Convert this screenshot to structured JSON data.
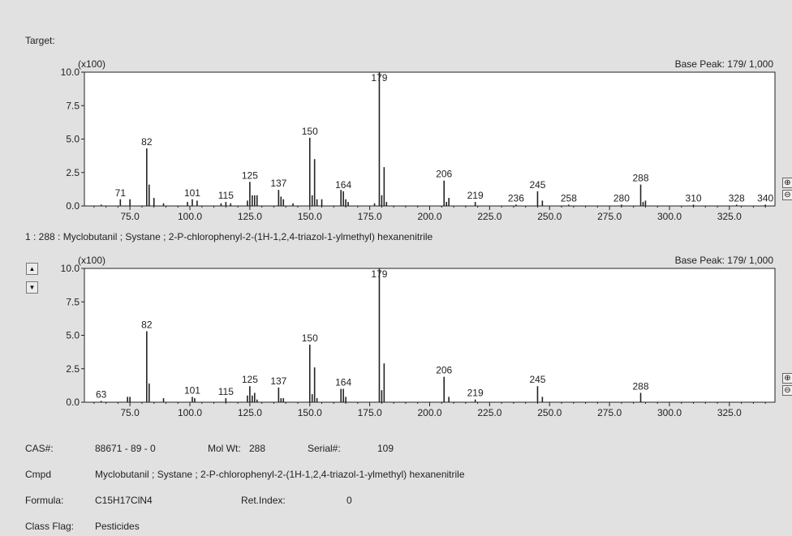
{
  "target_label": "Target:",
  "hit_caption": "1 : 288 : Myclobutanil ; Systane ; 2-P-chlorophenyl-2-(1H-1,2,4-triazol-1-ylmethyl) hexanenitrile",
  "colors": {
    "background": "#e1e1e1",
    "plot_bg": "#ffffff",
    "line": "#222222"
  },
  "icons": {
    "scroll_up": "▲",
    "scroll_down": "▼",
    "zoom_in": "⊕",
    "zoom_out": "⊖"
  },
  "chart_data": [
    {
      "type": "bar",
      "name_label": "Target",
      "scale_label": "(x100)",
      "base_peak_label": "Base Peak: 179/ 1,000",
      "xlim": [
        56,
        344
      ],
      "ylim": [
        0,
        10.0
      ],
      "yticks": [
        "0.0",
        "2.5",
        "5.0",
        "7.5",
        "10.0"
      ],
      "xticks": [
        "75.0",
        "100.0",
        "125.0",
        "150.0",
        "175.0",
        "200.0",
        "225.0",
        "250.0",
        "275.0",
        "300.0",
        "325.0"
      ],
      "grid": false,
      "peaks": [
        {
          "mz": 63,
          "i": 0.1
        },
        {
          "mz": 71,
          "i": 0.5,
          "label": "71"
        },
        {
          "mz": 75,
          "i": 0.5
        },
        {
          "mz": 82,
          "i": 4.3,
          "label": "82"
        },
        {
          "mz": 83,
          "i": 1.6
        },
        {
          "mz": 85,
          "i": 0.6
        },
        {
          "mz": 89,
          "i": 0.2
        },
        {
          "mz": 99,
          "i": 0.3
        },
        {
          "mz": 101,
          "i": 0.5,
          "label": "101"
        },
        {
          "mz": 103,
          "i": 0.4
        },
        {
          "mz": 113,
          "i": 0.2
        },
        {
          "mz": 115,
          "i": 0.3,
          "label": "115"
        },
        {
          "mz": 117,
          "i": 0.2
        },
        {
          "mz": 124,
          "i": 0.4
        },
        {
          "mz": 125,
          "i": 1.8,
          "label": "125"
        },
        {
          "mz": 126,
          "i": 0.8
        },
        {
          "mz": 127,
          "i": 0.8
        },
        {
          "mz": 128,
          "i": 0.8
        },
        {
          "mz": 137,
          "i": 1.2,
          "label": "137"
        },
        {
          "mz": 138,
          "i": 0.7
        },
        {
          "mz": 139,
          "i": 0.5
        },
        {
          "mz": 143,
          "i": 0.2
        },
        {
          "mz": 150,
          "i": 5.1,
          "label": "150"
        },
        {
          "mz": 151,
          "i": 0.8
        },
        {
          "mz": 152,
          "i": 3.5
        },
        {
          "mz": 153,
          "i": 0.5
        },
        {
          "mz": 155,
          "i": 0.5
        },
        {
          "mz": 163,
          "i": 1.2
        },
        {
          "mz": 164,
          "i": 1.1,
          "label": "164"
        },
        {
          "mz": 165,
          "i": 0.5
        },
        {
          "mz": 166,
          "i": 0.3
        },
        {
          "mz": 177,
          "i": 0.2
        },
        {
          "mz": 179,
          "i": 10.0,
          "label": "179"
        },
        {
          "mz": 180,
          "i": 0.8
        },
        {
          "mz": 181,
          "i": 2.9
        },
        {
          "mz": 182,
          "i": 0.3
        },
        {
          "mz": 206,
          "i": 1.9,
          "label": "206"
        },
        {
          "mz": 207,
          "i": 0.3
        },
        {
          "mz": 208,
          "i": 0.6
        },
        {
          "mz": 219,
          "i": 0.3,
          "label": "219"
        },
        {
          "mz": 236,
          "i": 0.1,
          "label": "236"
        },
        {
          "mz": 245,
          "i": 1.1,
          "label": "245"
        },
        {
          "mz": 247,
          "i": 0.4
        },
        {
          "mz": 258,
          "i": 0.1,
          "label": "258"
        },
        {
          "mz": 280,
          "i": 0.1,
          "label": "280"
        },
        {
          "mz": 288,
          "i": 1.6,
          "label": "288"
        },
        {
          "mz": 289,
          "i": 0.3
        },
        {
          "mz": 290,
          "i": 0.4
        },
        {
          "mz": 310,
          "i": 0.1,
          "label": "310"
        },
        {
          "mz": 328,
          "i": 0.1,
          "label": "328"
        },
        {
          "mz": 340,
          "i": 0.1,
          "label": "340"
        }
      ]
    },
    {
      "type": "bar",
      "scale_label": "(x100)",
      "base_peak_label": "Base Peak: 179/ 1,000",
      "xlim": [
        56,
        344
      ],
      "ylim": [
        0,
        10.0
      ],
      "yticks": [
        "0.0",
        "2.5",
        "5.0",
        "7.5",
        "10.0"
      ],
      "xticks": [
        "75.0",
        "100.0",
        "125.0",
        "150.0",
        "175.0",
        "200.0",
        "225.0",
        "250.0",
        "275.0",
        "300.0",
        "325.0"
      ],
      "grid": false,
      "peaks": [
        {
          "mz": 63,
          "i": 0.1,
          "label": "63"
        },
        {
          "mz": 74,
          "i": 0.4
        },
        {
          "mz": 75,
          "i": 0.4
        },
        {
          "mz": 82,
          "i": 5.3,
          "label": "82"
        },
        {
          "mz": 83,
          "i": 1.4
        },
        {
          "mz": 89,
          "i": 0.3
        },
        {
          "mz": 101,
          "i": 0.4,
          "label": "101"
        },
        {
          "mz": 102,
          "i": 0.3
        },
        {
          "mz": 115,
          "i": 0.3,
          "label": "115"
        },
        {
          "mz": 124,
          "i": 0.5
        },
        {
          "mz": 125,
          "i": 1.2,
          "label": "125"
        },
        {
          "mz": 126,
          "i": 0.5
        },
        {
          "mz": 127,
          "i": 0.7
        },
        {
          "mz": 128,
          "i": 0.2
        },
        {
          "mz": 137,
          "i": 1.1,
          "label": "137"
        },
        {
          "mz": 138,
          "i": 0.3
        },
        {
          "mz": 139,
          "i": 0.3
        },
        {
          "mz": 150,
          "i": 4.3,
          "label": "150"
        },
        {
          "mz": 151,
          "i": 0.6
        },
        {
          "mz": 152,
          "i": 2.6
        },
        {
          "mz": 153,
          "i": 0.3
        },
        {
          "mz": 163,
          "i": 1.0
        },
        {
          "mz": 164,
          "i": 1.0,
          "label": "164"
        },
        {
          "mz": 165,
          "i": 0.4
        },
        {
          "mz": 179,
          "i": 10.0,
          "label": "179"
        },
        {
          "mz": 180,
          "i": 0.9
        },
        {
          "mz": 181,
          "i": 2.9
        },
        {
          "mz": 206,
          "i": 1.9,
          "label": "206"
        },
        {
          "mz": 208,
          "i": 0.4
        },
        {
          "mz": 219,
          "i": 0.2,
          "label": "219"
        },
        {
          "mz": 245,
          "i": 1.2,
          "label": "245"
        },
        {
          "mz": 247,
          "i": 0.4
        },
        {
          "mz": 288,
          "i": 0.7,
          "label": "288"
        }
      ]
    }
  ],
  "info": {
    "cas_label": "CAS#:",
    "cas_value": "88671 - 89 - 0",
    "molwt_label": "Mol Wt:",
    "molwt_value": "288",
    "serial_label": "Serial#:",
    "serial_value": "109",
    "cmpd_label": "Cmpd",
    "cmpd_value": "Myclobutanil ; Systane ; 2-P-chlorophenyl-2-(1H-1,2,4-triazol-1-ylmethyl) hexanenitrile",
    "formula_label": "Formula:",
    "formula_value": "C15H17ClN4",
    "retindex_label": "Ret.Index:",
    "retindex_value": "0",
    "classflag_label": "Class Flag:",
    "classflag_value": "Pesticides"
  }
}
